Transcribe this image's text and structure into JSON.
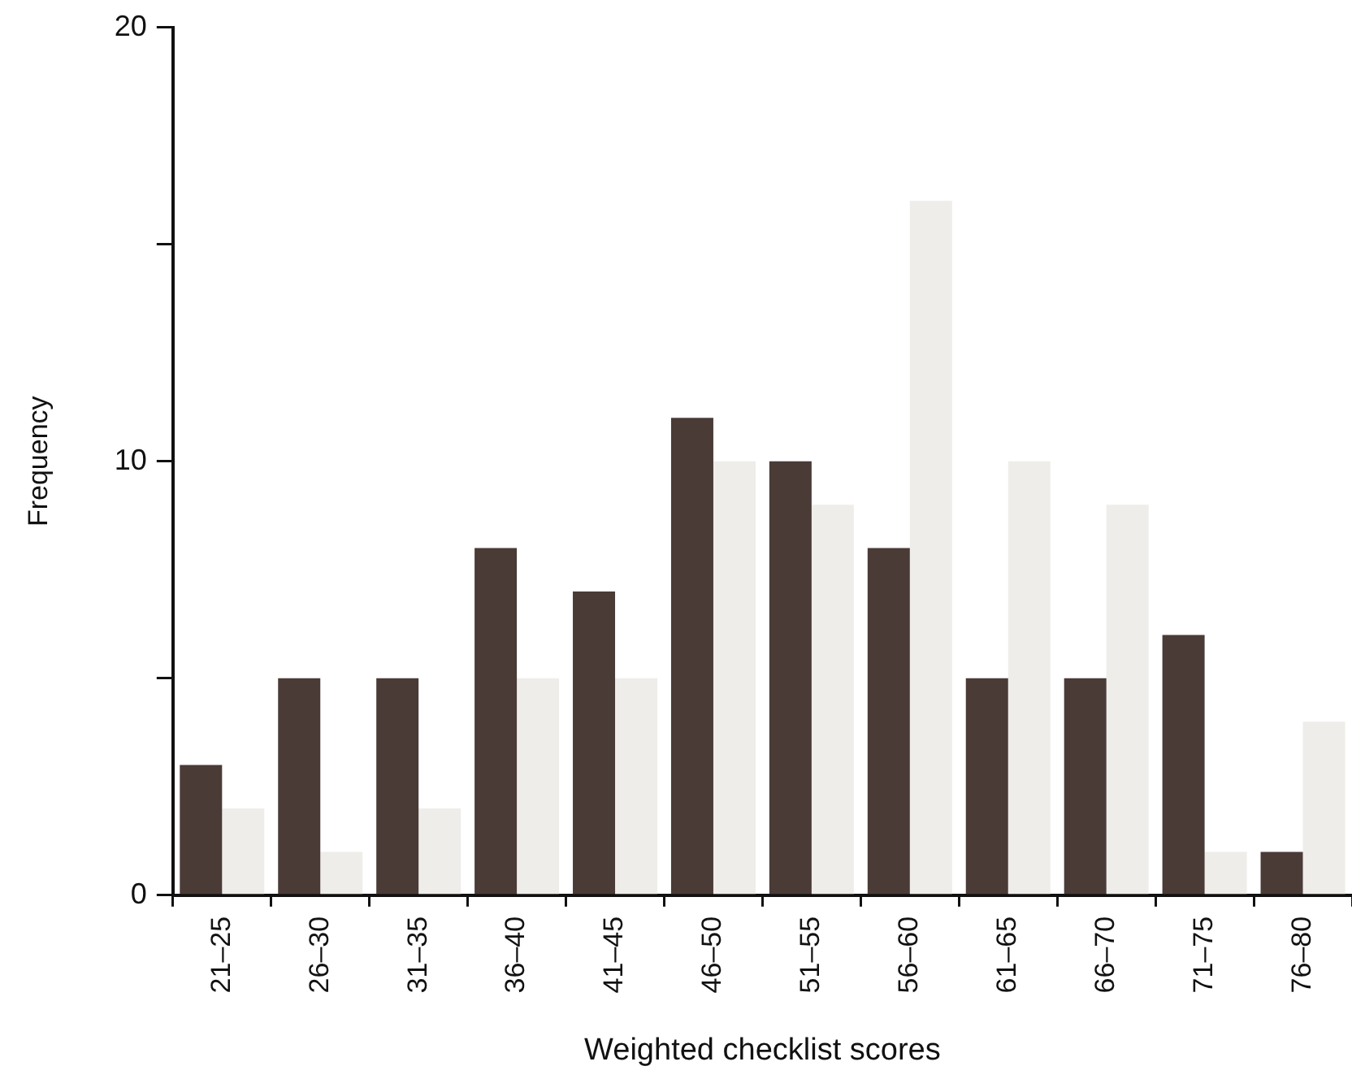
{
  "chart_data": {
    "type": "bar",
    "xlabel": "Weighted checklist scores",
    "ylabel": "Frequency",
    "categories": [
      "21–25",
      "26–30",
      "31–35",
      "36–40",
      "41–45",
      "46–50",
      "51–55",
      "56–60",
      "61–65",
      "66–70",
      "71–75",
      "76–80"
    ],
    "series": [
      {
        "color": "#4a3b37",
        "values": [
          3,
          5,
          5,
          8,
          7,
          11,
          10,
          8,
          5,
          5,
          6,
          1
        ]
      },
      {
        "color": "#efedea",
        "values": [
          2,
          1,
          2,
          5,
          5,
          10,
          9,
          16,
          10,
          9,
          1,
          4
        ]
      }
    ],
    "ylim": [
      0,
      20
    ],
    "yticks": [
      0,
      {
        "value": 5,
        "label": null
      },
      10,
      {
        "value": 15,
        "label": null
      },
      20
    ],
    "grid": false,
    "legend": false
  }
}
